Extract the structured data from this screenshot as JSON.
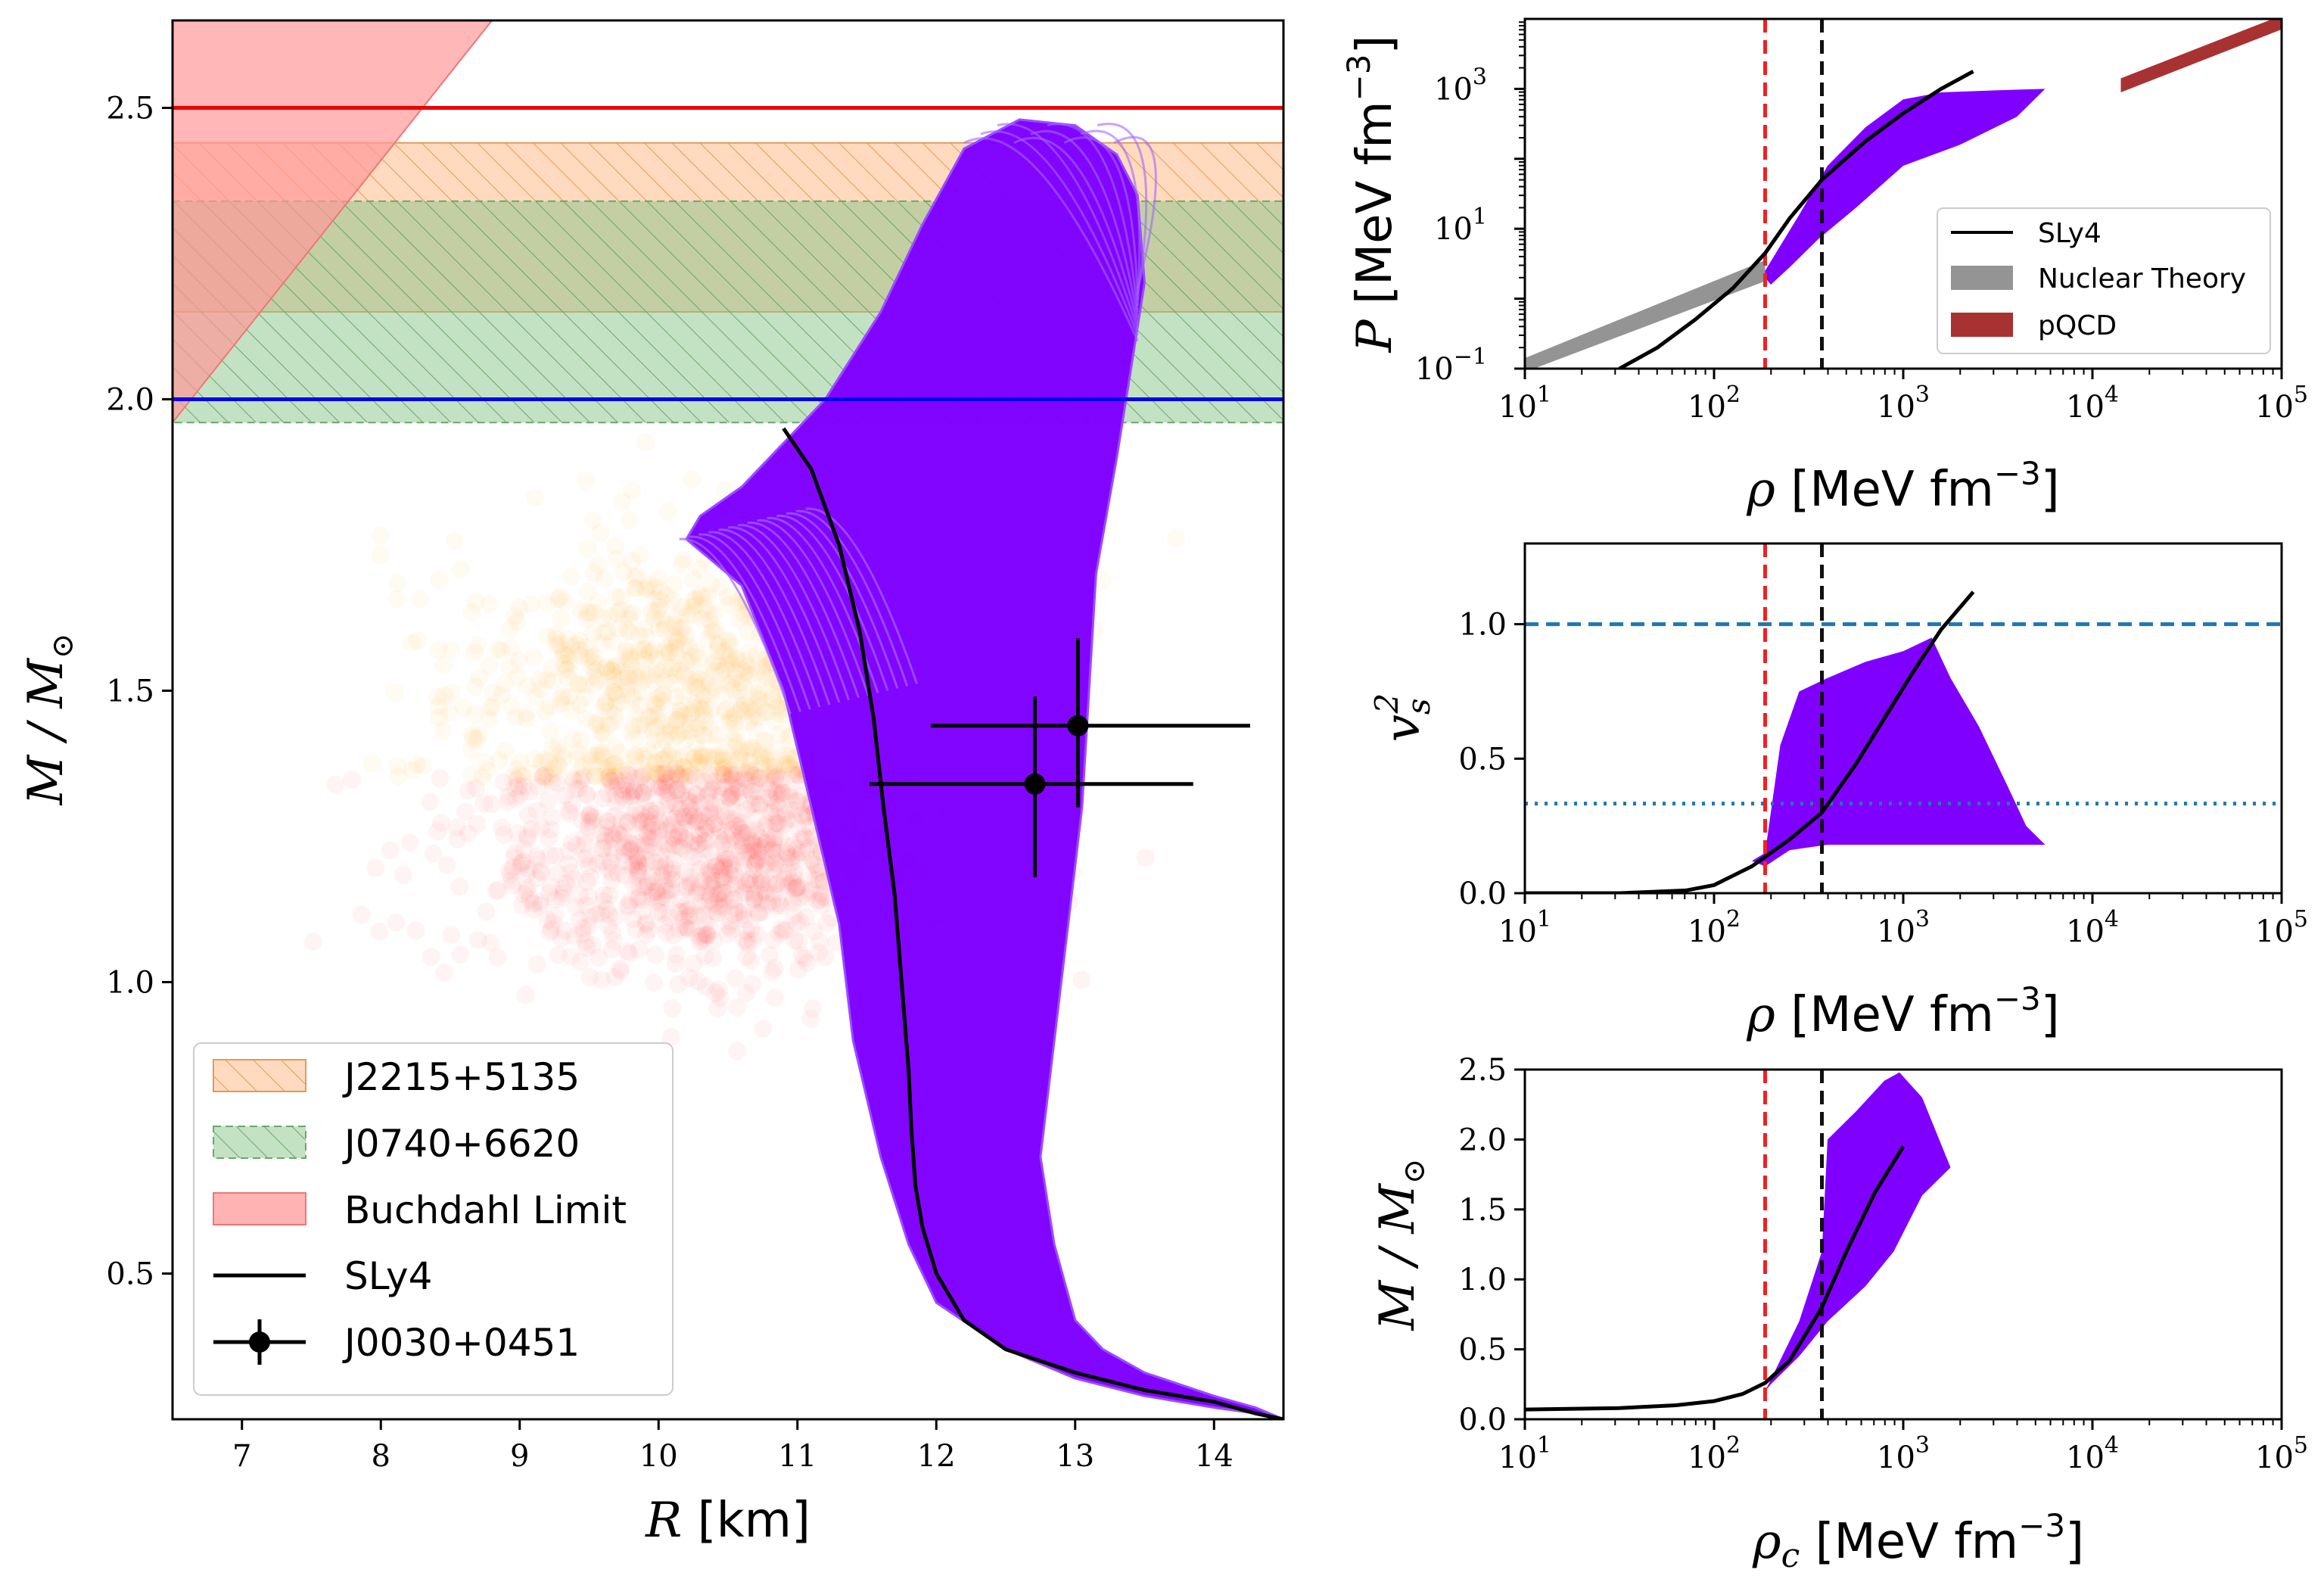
{
  "colors": {
    "eos_fill": "#7f00ff",
    "sly4": "#000000",
    "j2215": "#ffbb88",
    "j0740": "#88c488",
    "buchdahl": "#ff9999",
    "red_line": "#ee0000",
    "blue_line": "#0000ee",
    "nuclear_theory": "#888888",
    "pqcd": "#a83232",
    "sat_red": "#ee2222",
    "sat_black": "#111111",
    "ref_blue": "#1f77b4",
    "cloud_orange": "#ffa500",
    "cloud_red": "#ff2020"
  },
  "chart_data": [
    {
      "id": "mass-radius",
      "type": "line",
      "xlabel_var": "R",
      "xlabel_unit": "[km]",
      "ylabel": "M / M",
      "ylabel_sub": "⊙",
      "xlim": [
        6.5,
        14.5
      ],
      "ylim": [
        0.25,
        2.65
      ],
      "xticks": [
        7,
        8,
        9,
        10,
        11,
        12,
        13,
        14
      ],
      "yticks": [
        0.5,
        1.0,
        1.5,
        2.0,
        2.5
      ],
      "ytick_labels": [
        "0.5",
        "1.0",
        "1.5",
        "2.0",
        "2.5"
      ],
      "hlines": [
        {
          "y": 2.5,
          "color": "#ee0000",
          "name": "upper-mass-line"
        },
        {
          "y": 2.0,
          "color": "#0000ee",
          "name": "two-solar-mass-line"
        }
      ],
      "bands": [
        {
          "name": "J2215+5135",
          "y": [
            2.15,
            2.44
          ],
          "color": "#ffbb88",
          "hatch": true
        },
        {
          "name": "J0740+6620",
          "y": [
            1.96,
            2.34
          ],
          "color": "#88c488",
          "hatch": true
        }
      ],
      "buchdahl_polygon": [
        [
          6.5,
          2.65
        ],
        [
          8.8,
          2.65
        ],
        [
          6.5,
          1.96
        ]
      ],
      "eos_band_polygon": [
        [
          14.5,
          0.25
        ],
        [
          14.3,
          0.27
        ],
        [
          14.0,
          0.29
        ],
        [
          13.5,
          0.33
        ],
        [
          13.2,
          0.37
        ],
        [
          13.0,
          0.42
        ],
        [
          12.85,
          0.55
        ],
        [
          12.75,
          0.7
        ],
        [
          12.85,
          0.9
        ],
        [
          12.95,
          1.1
        ],
        [
          13.05,
          1.3
        ],
        [
          13.1,
          1.5
        ],
        [
          13.15,
          1.7
        ],
        [
          13.3,
          1.9
        ],
        [
          13.4,
          2.05
        ],
        [
          13.5,
          2.2
        ],
        [
          13.45,
          2.35
        ],
        [
          13.3,
          2.42
        ],
        [
          13.0,
          2.47
        ],
        [
          12.6,
          2.48
        ],
        [
          12.2,
          2.43
        ],
        [
          11.9,
          2.3
        ],
        [
          11.6,
          2.15
        ],
        [
          11.2,
          2.0
        ],
        [
          11.0,
          1.95
        ],
        [
          10.6,
          1.85
        ],
        [
          10.3,
          1.8
        ],
        [
          10.2,
          1.76
        ],
        [
          10.35,
          1.73
        ],
        [
          10.6,
          1.68
        ],
        [
          10.9,
          1.5
        ],
        [
          11.1,
          1.3
        ],
        [
          11.3,
          1.1
        ],
        [
          11.4,
          0.9
        ],
        [
          11.6,
          0.7
        ],
        [
          11.8,
          0.55
        ],
        [
          12.0,
          0.45
        ],
        [
          12.5,
          0.37
        ],
        [
          13.0,
          0.32
        ],
        [
          13.5,
          0.29
        ],
        [
          14.0,
          0.27
        ],
        [
          14.3,
          0.26
        ]
      ],
      "series": [
        {
          "name": "SLy4",
          "x": [
            10.9,
            11.1,
            11.3,
            11.45,
            11.55,
            11.62,
            11.7,
            11.75,
            11.8,
            11.82,
            11.85,
            11.9,
            12.0,
            12.2,
            12.5,
            13.0,
            13.5,
            14.0,
            14.3,
            14.5
          ],
          "y": [
            1.95,
            1.88,
            1.75,
            1.6,
            1.45,
            1.3,
            1.15,
            1.0,
            0.85,
            0.75,
            0.65,
            0.58,
            0.5,
            0.42,
            0.37,
            0.33,
            0.3,
            0.28,
            0.26,
            0.25
          ]
        }
      ],
      "errorbars": [
        {
          "name": "J0030+0451",
          "points": [
            {
              "x": 12.71,
              "y": 1.34,
              "xerr": [
                1.19,
                1.14
              ],
              "yerr": [
                0.16,
                0.15
              ]
            },
            {
              "x": 13.02,
              "y": 1.44,
              "xerr": [
                1.06,
                1.24
              ],
              "yerr": [
                0.14,
                0.15
              ]
            }
          ]
        }
      ],
      "clouds": [
        {
          "name": "orange-posterior-cloud",
          "center": [
            10.3,
            1.5
          ],
          "spread": [
            0.9,
            0.13
          ],
          "count": 900,
          "y_min": 1.35,
          "color": "#ffa500"
        },
        {
          "name": "red-posterior-cloud",
          "center": [
            10.5,
            1.22
          ],
          "spread": [
            0.9,
            0.1
          ],
          "count": 1100,
          "y_max": 1.36,
          "color": "#ff2020"
        }
      ],
      "legend": [
        {
          "label": "J2215+5135",
          "kind": "band-hatch",
          "color": "#ffbb88"
        },
        {
          "label": "J0740+6620",
          "kind": "band-hatch",
          "color": "#88c488"
        },
        {
          "label": "Buchdahl Limit",
          "kind": "band",
          "color": "#ff9999"
        },
        {
          "label": "SLy4",
          "kind": "line",
          "color": "#000000"
        },
        {
          "label": "J0030+0451",
          "kind": "errorbar",
          "color": "#000000"
        }
      ],
      "legend_position": "lower-left"
    },
    {
      "id": "pressure-density",
      "type": "line",
      "log_x": true,
      "log_y": true,
      "xlabel_var": "ρ",
      "xlabel_unit": "[MeV fm",
      "xlabel_exp": "−3",
      "ylabel_var": "P",
      "ylabel_unit": "[MeV fm",
      "ylabel_exp": "−3",
      "xlim": [
        1,
        5
      ],
      "ylim": [
        -1,
        4
      ],
      "xtick_exps": [
        1,
        2,
        3,
        4,
        5
      ],
      "ytick_exps": [
        -1,
        1,
        3
      ],
      "ytick_labels": [
        "10",
        "10",
        "10"
      ],
      "ytick_exp_labels": [
        "−1",
        "1",
        "3"
      ],
      "xtick_labels": [
        "10",
        "10",
        "10",
        "10",
        "10"
      ],
      "xtick_exp_labels": [
        "1",
        "2",
        "3",
        "4",
        "5"
      ],
      "vlines": [
        {
          "x": 2.27,
          "color": "#ee2222",
          "name": "saturation-density-line"
        },
        {
          "x": 2.57,
          "color": "#111111",
          "name": "twice-saturation-line"
        }
      ],
      "eos_band_polygon": [
        [
          2.27,
          0.4
        ],
        [
          2.45,
          1.2
        ],
        [
          2.6,
          1.9
        ],
        [
          2.8,
          2.45
        ],
        [
          3.0,
          2.85
        ],
        [
          3.2,
          2.95
        ],
        [
          3.5,
          2.98
        ],
        [
          3.75,
          3.0
        ],
        [
          3.6,
          2.6
        ],
        [
          3.3,
          2.2
        ],
        [
          3.0,
          1.9
        ],
        [
          2.75,
          1.3
        ],
        [
          2.55,
          0.85
        ],
        [
          2.4,
          0.45
        ],
        [
          2.3,
          0.2
        ],
        [
          2.27,
          0.3
        ]
      ],
      "nuclear_theory_band": [
        [
          1,
          -0.85
        ],
        [
          2.27,
          0.55
        ],
        [
          2.27,
          0.25
        ],
        [
          1,
          -1.05
        ]
      ],
      "pqcd_band": [
        [
          4.15,
          3.15
        ],
        [
          5,
          4.05
        ],
        [
          5,
          3.85
        ],
        [
          4.15,
          2.95
        ]
      ],
      "series": [
        {
          "name": "SLy4",
          "x": [
            1.5,
            1.7,
            1.9,
            2.1,
            2.27,
            2.4,
            2.57,
            2.8,
            3.0,
            3.2,
            3.37
          ],
          "y": [
            -1.0,
            -0.7,
            -0.3,
            0.15,
            0.65,
            1.15,
            1.7,
            2.25,
            2.65,
            3.0,
            3.25
          ]
        }
      ],
      "legend": [
        {
          "label": "SLy4",
          "kind": "line",
          "color": "#000000"
        },
        {
          "label": "Nuclear Theory",
          "kind": "band",
          "color": "#888888"
        },
        {
          "label": "pQCD",
          "kind": "band",
          "color": "#a83232"
        }
      ],
      "legend_position": "lower-right"
    },
    {
      "id": "speed-of-sound",
      "type": "line",
      "log_x": true,
      "xlabel_var": "ρ",
      "xlabel_unit": "[MeV fm",
      "xlabel_exp": "−3",
      "ylabel_var": "v",
      "ylabel_sub": "s",
      "ylabel_sup": "2",
      "xlim": [
        1,
        5
      ],
      "ylim": [
        0,
        1.3
      ],
      "yticks": [
        0.0,
        0.5,
        1.0
      ],
      "ytick_labels": [
        "0.0",
        "0.5",
        "1.0"
      ],
      "xtick_exps": [
        1,
        2,
        3,
        4,
        5
      ],
      "xtick_labels": [
        "10",
        "10",
        "10",
        "10",
        "10"
      ],
      "xtick_exp_labels": [
        "1",
        "2",
        "3",
        "4",
        "5"
      ],
      "vlines": [
        {
          "x": 2.27,
          "color": "#ee2222",
          "name": "saturation-density-line"
        },
        {
          "x": 2.57,
          "color": "#111111",
          "name": "twice-saturation-line"
        }
      ],
      "hlines": [
        {
          "y": 1.0,
          "style": "dashed",
          "color": "#1f77b4",
          "name": "causal-limit-line"
        },
        {
          "y": 0.333,
          "style": "dotted",
          "color": "#1f77b4",
          "name": "conformal-limit-line"
        }
      ],
      "eos_band_polygon": [
        [
          2.2,
          0.12
        ],
        [
          2.27,
          0.15
        ],
        [
          2.35,
          0.55
        ],
        [
          2.45,
          0.75
        ],
        [
          2.6,
          0.8
        ],
        [
          2.8,
          0.86
        ],
        [
          3.0,
          0.9
        ],
        [
          3.15,
          0.95
        ],
        [
          3.25,
          0.8
        ],
        [
          3.4,
          0.62
        ],
        [
          3.55,
          0.4
        ],
        [
          3.65,
          0.25
        ],
        [
          3.75,
          0.18
        ],
        [
          3.3,
          0.18
        ],
        [
          2.9,
          0.18
        ],
        [
          2.6,
          0.18
        ],
        [
          2.4,
          0.16
        ],
        [
          2.27,
          0.1
        ]
      ],
      "series": [
        {
          "name": "SLy4",
          "x": [
            1.0,
            1.5,
            1.85,
            2.0,
            2.2,
            2.4,
            2.57,
            2.75,
            2.9,
            3.05,
            3.2,
            3.37
          ],
          "y": [
            0.0,
            0.0,
            0.01,
            0.03,
            0.1,
            0.2,
            0.3,
            0.48,
            0.65,
            0.82,
            0.98,
            1.12
          ]
        }
      ]
    },
    {
      "id": "mass-central-density",
      "type": "line",
      "log_x": true,
      "xlabel_var": "ρ",
      "xlabel_sub": "c",
      "xlabel_unit": "[MeV fm",
      "xlabel_exp": "−3",
      "ylabel": "M / M",
      "ylabel_sub": "⊙",
      "xlim": [
        1,
        5
      ],
      "ylim": [
        0,
        2.5
      ],
      "yticks": [
        0.0,
        0.5,
        1.0,
        1.5,
        2.0,
        2.5
      ],
      "ytick_labels": [
        "0.0",
        "0.5",
        "1.0",
        "1.5",
        "2.0",
        "2.5"
      ],
      "xtick_exps": [
        1,
        2,
        3,
        4,
        5
      ],
      "xtick_labels": [
        "10",
        "10",
        "10",
        "10",
        "10"
      ],
      "xtick_exp_labels": [
        "1",
        "2",
        "3",
        "4",
        "5"
      ],
      "vlines": [
        {
          "x": 2.27,
          "color": "#ee2222",
          "name": "saturation-density-line"
        },
        {
          "x": 2.57,
          "color": "#111111",
          "name": "twice-saturation-line"
        }
      ],
      "eos_band_polygon": [
        [
          2.27,
          0.2
        ],
        [
          2.45,
          0.7
        ],
        [
          2.57,
          1.2
        ],
        [
          2.6,
          2.0
        ],
        [
          2.75,
          2.2
        ],
        [
          2.9,
          2.42
        ],
        [
          2.98,
          2.48
        ],
        [
          3.1,
          2.3
        ],
        [
          3.25,
          1.8
        ],
        [
          3.1,
          1.6
        ],
        [
          2.95,
          1.2
        ],
        [
          2.8,
          0.95
        ],
        [
          2.6,
          0.7
        ],
        [
          2.45,
          0.45
        ],
        [
          2.3,
          0.25
        ]
      ],
      "series": [
        {
          "name": "SLy4",
          "x": [
            1.0,
            1.5,
            1.8,
            2.0,
            2.15,
            2.27,
            2.4,
            2.57,
            2.7,
            2.85,
            3.0
          ],
          "y": [
            0.07,
            0.08,
            0.1,
            0.13,
            0.18,
            0.26,
            0.42,
            0.8,
            1.2,
            1.62,
            1.95
          ]
        }
      ]
    }
  ]
}
